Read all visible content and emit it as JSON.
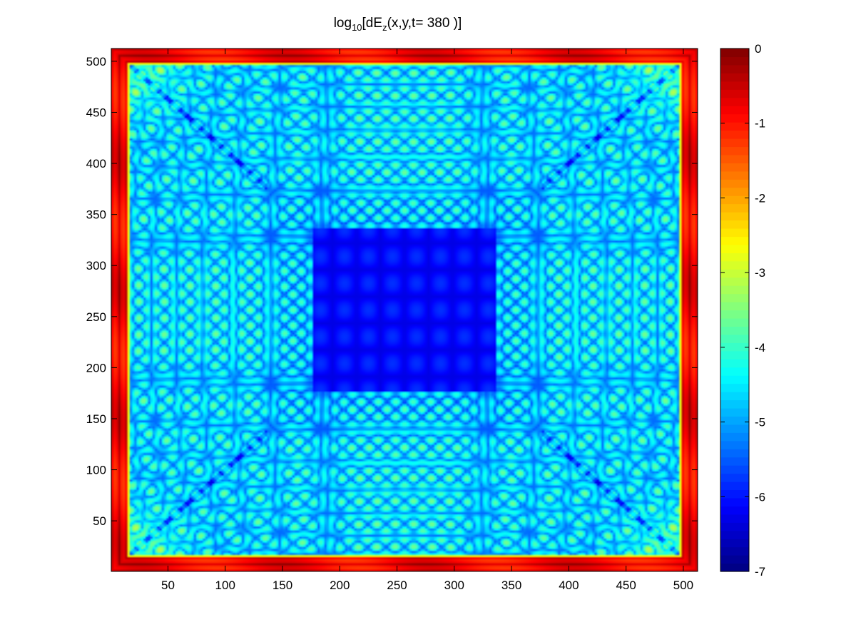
{
  "chart_data": {
    "type": "heatmap",
    "title": {
      "prefix": "log",
      "subscript": "10",
      "middle": "[dE",
      "subscript2": "z",
      "suffix": "(x,y,t= 380 )]"
    },
    "xlabel": "",
    "ylabel": "",
    "xlim": [
      0.5,
      512.5
    ],
    "ylim": [
      0.5,
      512.5
    ],
    "x_ticks": [
      50,
      100,
      150,
      200,
      250,
      300,
      350,
      400,
      450,
      500
    ],
    "y_ticks": [
      50,
      100,
      150,
      200,
      250,
      300,
      350,
      400,
      450,
      500
    ],
    "colorbar": {
      "colormap": "jet",
      "range": [
        -7,
        0
      ],
      "ticks": [
        0,
        -1,
        -2,
        -3,
        -4,
        -5,
        -6,
        -7
      ]
    },
    "grid": false,
    "colors": {
      "low": "#00008f",
      "mid": "#00ffff",
      "high": "#800000"
    }
  }
}
